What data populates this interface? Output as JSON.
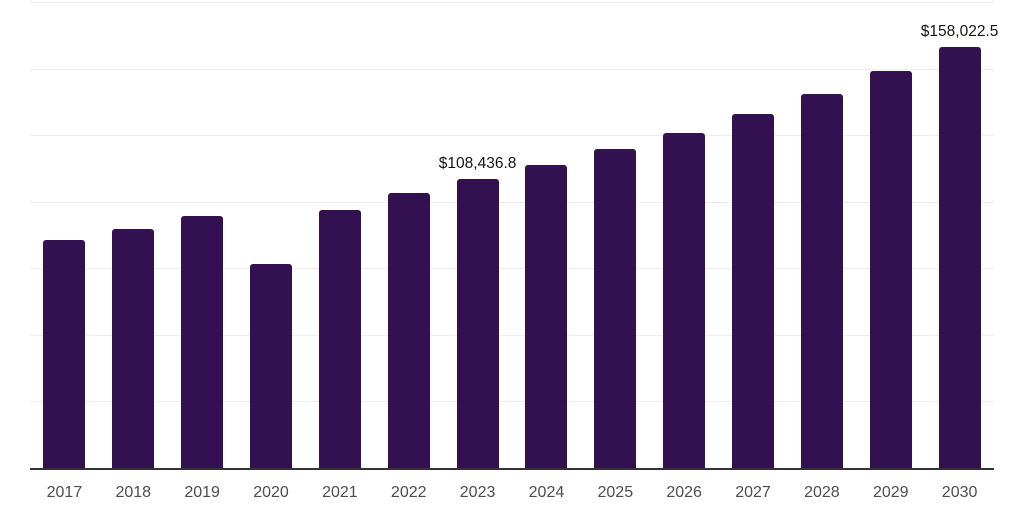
{
  "figure": {
    "background": "#ffffff",
    "bar_color": "#331150",
    "grid_color": "#ededed",
    "axis_color": "#333333",
    "tick_color": "#4d4d4d",
    "value_label_color": "#141414"
  },
  "chart_data": {
    "type": "bar",
    "title": "",
    "xlabel": "",
    "ylabel": "",
    "categories": [
      "2017",
      "2018",
      "2019",
      "2020",
      "2021",
      "2022",
      "2023",
      "2024",
      "2025",
      "2026",
      "2027",
      "2028",
      "2029",
      "2030"
    ],
    "values": [
      85500,
      89800,
      94500,
      76800,
      97000,
      103300,
      108436.8,
      113900,
      119800,
      125800,
      132900,
      140400,
      149100,
      158022.5
    ],
    "point_labels": {
      "2023": "$108,436.8",
      "2030": "$158,022.5"
    },
    "ylim": [
      0,
      175000
    ],
    "gridline_step": 25000,
    "grid": "horizontal-only",
    "legend": "none",
    "y_axis_tick_labels_visible": false,
    "bar_corner_radius": 3
  }
}
